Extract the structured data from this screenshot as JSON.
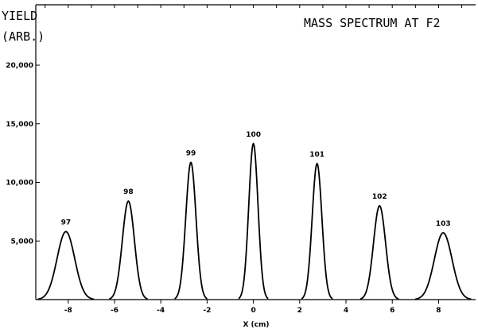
{
  "chart_data": {
    "type": "line",
    "title": "MASS SPECTRUM AT F2",
    "ylabel_line1": "YIELD",
    "ylabel_line2": "(ARB.)",
    "xlabel": "X (cm)",
    "xlim": [
      -9.4,
      9.6
    ],
    "ylim": [
      0,
      20000
    ],
    "x_ticks": [
      -8,
      -6,
      -4,
      -2,
      0,
      2,
      4,
      6,
      8
    ],
    "y_ticks": [
      5000,
      10000,
      15000,
      20000
    ],
    "y_tick_labels": [
      "5,000",
      "10,000",
      "15,000",
      "20,000"
    ],
    "grid": false,
    "line_color": "#000000",
    "series": [
      {
        "peaks": [
          {
            "label": "97",
            "x": -8.1,
            "y": 5800,
            "width": 0.38
          },
          {
            "label": "98",
            "x": -5.4,
            "y": 8400,
            "width": 0.26
          },
          {
            "label": "99",
            "x": -2.7,
            "y": 11700,
            "width": 0.22
          },
          {
            "label": "100",
            "x": 0.0,
            "y": 13300,
            "width": 0.2
          },
          {
            "label": "101",
            "x": 2.75,
            "y": 11600,
            "width": 0.21
          },
          {
            "label": "102",
            "x": 5.45,
            "y": 8000,
            "width": 0.26
          },
          {
            "label": "103",
            "x": 8.2,
            "y": 5700,
            "width": 0.38
          }
        ]
      }
    ]
  }
}
